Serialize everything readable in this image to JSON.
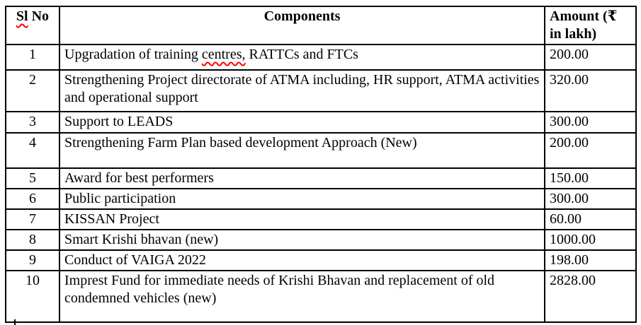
{
  "table": {
    "header": {
      "sl_no": "Sl No",
      "sl_no_misspelled": "Sl",
      "components": "Components",
      "amount": "Amount (₹ in lakh)"
    },
    "rows": [
      {
        "sl": "1",
        "component": "Upgradation of training centres, RATTCs and FTCs",
        "misspelled": "centres,",
        "amount": "200.00"
      },
      {
        "sl": "2",
        "component": "Strengthening Project directorate of ATMA including, HR support, ATMA activities and operational support",
        "amount": "320.00"
      },
      {
        "sl": "3",
        "component": "Support to LEADS",
        "amount": "300.00"
      },
      {
        "sl": "4",
        "component": "Strengthening Farm Plan based development Approach (New)",
        "amount": "200.00"
      },
      {
        "sl": "5",
        "component": "Award for best performers",
        "amount": "150.00"
      },
      {
        "sl": "6",
        "component": "Public participation",
        "amount": "300.00"
      },
      {
        "sl": "7",
        "component": "KISSAN Project",
        "amount": "60.00"
      },
      {
        "sl": "8",
        "component": "Smart Krishi bhavan (new)",
        "amount": "1000.00"
      },
      {
        "sl": "9",
        "component": "Conduct of VAIGA 2022",
        "amount": "198.00"
      },
      {
        "sl": "10",
        "component": "Imprest Fund for immediate needs of Krishi Bhavan and replacement of old condemned vehicles (new)",
        "amount": "2828.00"
      }
    ]
  },
  "colors": {
    "text": "#000000",
    "border": "#000000",
    "spellcheck": "#ff0000",
    "background": "#ffffff"
  }
}
